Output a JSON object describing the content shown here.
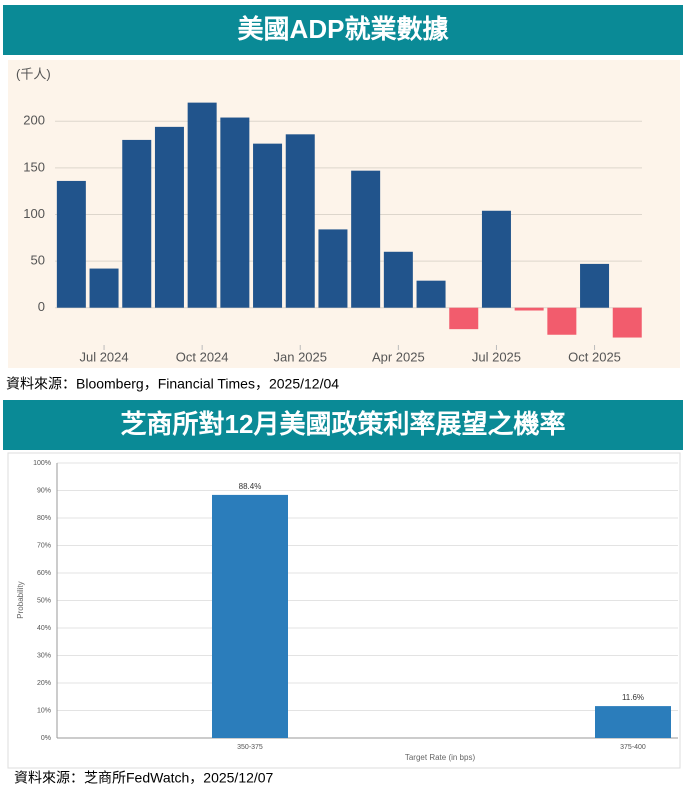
{
  "header1": "美國ADP就業數據",
  "source1": "資料來源：Bloomberg，Financial Times，2025/12/04",
  "header2": "芝商所對12月美國政策利率展望之機率",
  "source2": "資料來源：芝商所FedWatch，2025/12/07",
  "chart_data": [
    {
      "type": "bar",
      "y_label": "(千人)",
      "categories": [
        null,
        "Jul 2024",
        null,
        null,
        "Oct 2024",
        null,
        null,
        "Jan 2025",
        null,
        null,
        "Apr 2025",
        null,
        null,
        "Jul 2025",
        null,
        null,
        "Oct 2025",
        null
      ],
      "values": [
        136,
        42,
        180,
        194,
        220,
        204,
        176,
        186,
        84,
        147,
        60,
        29,
        -23,
        104,
        -3,
        -29,
        47,
        -32
      ],
      "color": "#21548c",
      "negative_color": "#f25c6d",
      "ylim": [
        -40,
        255
      ],
      "yticks": [
        0,
        50,
        100,
        150,
        200
      ],
      "grid": true
    },
    {
      "type": "bar",
      "y_label": "Probability",
      "x_label": "Target Rate (in bps)",
      "categories": [
        "350-375",
        "375-400"
      ],
      "values": [
        88.4,
        11.6
      ],
      "value_labels": [
        "88.4%",
        "11.6%"
      ],
      "color": "#2b7dbb",
      "ylim": [
        0,
        100
      ],
      "yticks": [
        {
          "value": 0,
          "label": "0%"
        },
        {
          "value": 10,
          "label": "10%"
        },
        {
          "value": 20,
          "label": "20%"
        },
        {
          "value": 30,
          "label": "30%"
        },
        {
          "value": 40,
          "label": "40%"
        },
        {
          "value": 50,
          "label": "50%"
        },
        {
          "value": 60,
          "label": "60%"
        },
        {
          "value": 70,
          "label": "70%"
        },
        {
          "value": 80,
          "label": "80%"
        },
        {
          "value": 90,
          "label": "90%"
        },
        {
          "value": 100,
          "label": "100%"
        }
      ],
      "grid": true
    }
  ]
}
